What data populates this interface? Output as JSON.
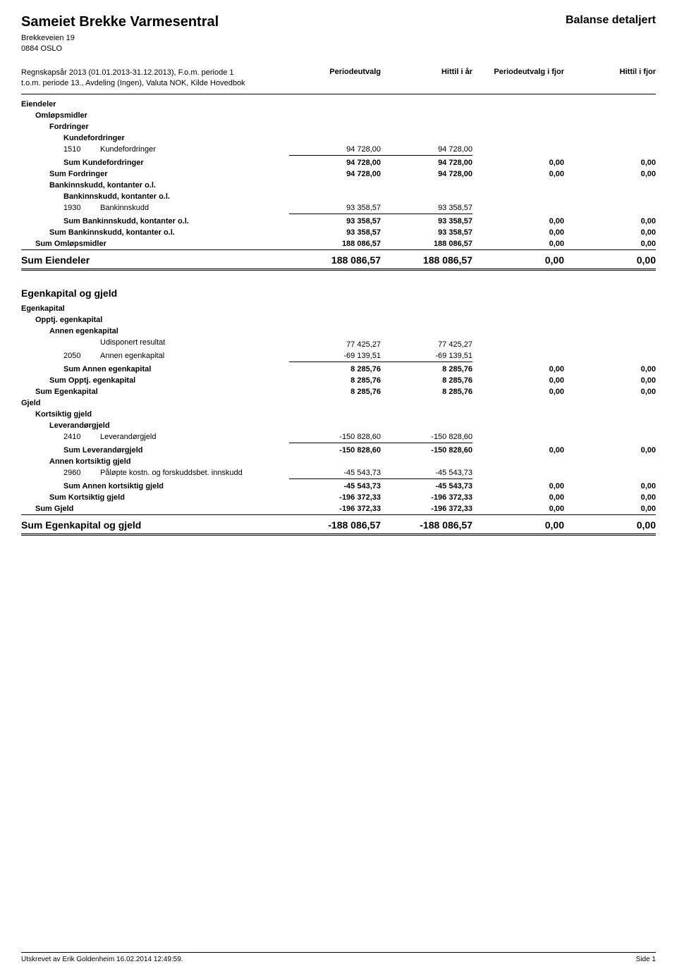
{
  "header": {
    "company_name": "Sameiet Brekke Varmesentral",
    "address_line1": "Brekkeveien 19",
    "address_line2": "0884 OSLO",
    "report_title": "Balanse detaljert"
  },
  "meta": {
    "line1": "Regnskapsår 2013 (01.01.2013-31.12.2013), F.o.m. periode 1 t.o.m. periode 13., Avdeling (Ingen), Valuta NOK, Kilde Hovedbok",
    "col1": "Periodeutvalg",
    "col2": "Hittil i år",
    "col3": "Periodeutvalg i fjor",
    "col4": "Hittil i fjor"
  },
  "eiendeler": {
    "title": "Eiendeler",
    "omlopsmidler": "Omløpsmidler",
    "fordringer": "Fordringer",
    "kundefordringer": "Kundefordringer",
    "kundefordringer_row": {
      "no": "1510",
      "label": "Kundefordringer",
      "v1": "94 728,00",
      "v2": "94 728,00"
    },
    "sum_kundefordringer": {
      "label": "Sum Kundefordringer",
      "v1": "94 728,00",
      "v2": "94 728,00",
      "v3": "0,00",
      "v4": "0,00"
    },
    "sum_fordringer": {
      "label": "Sum Fordringer",
      "v1": "94 728,00",
      "v2": "94 728,00",
      "v3": "0,00",
      "v4": "0,00"
    },
    "bank1": "Bankinnskudd, kontanter o.l.",
    "bank2": "Bankinnskudd, kontanter o.l.",
    "bank_row": {
      "no": "1930",
      "label": "Bankinnskudd",
      "v1": "93 358,57",
      "v2": "93 358,57"
    },
    "sum_bank1": {
      "label": "Sum Bankinnskudd, kontanter o.l.",
      "v1": "93 358,57",
      "v2": "93 358,57",
      "v3": "0,00",
      "v4": "0,00"
    },
    "sum_bank2": {
      "label": "Sum Bankinnskudd, kontanter o.l.",
      "v1": "93 358,57",
      "v2": "93 358,57",
      "v3": "0,00",
      "v4": "0,00"
    },
    "sum_omlop": {
      "label": "Sum Omløpsmidler",
      "v1": "188 086,57",
      "v2": "188 086,57",
      "v3": "0,00",
      "v4": "0,00"
    },
    "sum_eiendeler": {
      "label": "Sum Eiendeler",
      "v1": "188 086,57",
      "v2": "188 086,57",
      "v3": "0,00",
      "v4": "0,00"
    }
  },
  "egen": {
    "title": "Egenkapital og gjeld",
    "egenkapital": "Egenkapital",
    "opptj": "Opptj. egenkapital",
    "annen_egen": "Annen egenkapital",
    "udisp_row": {
      "label": "Udisponert resultat",
      "v1": "77 425,27",
      "v2": "77 425,27"
    },
    "annen_row": {
      "no": "2050",
      "label": "Annen egenkapital",
      "v1": "-69 139,51",
      "v2": "-69 139,51"
    },
    "sum_annen_egen": {
      "label": "Sum Annen egenkapital",
      "v1": "8 285,76",
      "v2": "8 285,76",
      "v3": "0,00",
      "v4": "0,00"
    },
    "sum_opptj": {
      "label": "Sum Opptj. egenkapital",
      "v1": "8 285,76",
      "v2": "8 285,76",
      "v3": "0,00",
      "v4": "0,00"
    },
    "sum_egenkap": {
      "label": "Sum Egenkapital",
      "v1": "8 285,76",
      "v2": "8 285,76",
      "v3": "0,00",
      "v4": "0,00"
    },
    "gjeld": "Gjeld",
    "kortsiktig": "Kortsiktig gjeld",
    "lev": "Leverandørgjeld",
    "lev_row": {
      "no": "2410",
      "label": "Leverandørgjeld",
      "v1": "-150 828,60",
      "v2": "-150 828,60"
    },
    "sum_lev": {
      "label": "Sum Leverandørgjeld",
      "v1": "-150 828,60",
      "v2": "-150 828,60",
      "v3": "0,00",
      "v4": "0,00"
    },
    "annen_kort": "Annen kortsiktig gjeld",
    "palopte_row": {
      "no": "2960",
      "label": "Påløpte kostn. og forskuddsbet. innskudd",
      "v1": "-45 543,73",
      "v2": "-45 543,73"
    },
    "sum_annen_kort": {
      "label": "Sum Annen kortsiktig gjeld",
      "v1": "-45 543,73",
      "v2": "-45 543,73",
      "v3": "0,00",
      "v4": "0,00"
    },
    "sum_kortsiktig": {
      "label": "Sum Kortsiktig gjeld",
      "v1": "-196 372,33",
      "v2": "-196 372,33",
      "v3": "0,00",
      "v4": "0,00"
    },
    "sum_gjeld": {
      "label": "Sum Gjeld",
      "v1": "-196 372,33",
      "v2": "-196 372,33",
      "v3": "0,00",
      "v4": "0,00"
    },
    "sum_egen_gjeld": {
      "label": "Sum Egenkapital og gjeld",
      "v1": "-188 086,57",
      "v2": "-188 086,57",
      "v3": "0,00",
      "v4": "0,00"
    }
  },
  "footer": {
    "left": "Utskrevet av Erik Goldenheim 16.02.2014 12:49:59.",
    "right": "Side 1"
  }
}
